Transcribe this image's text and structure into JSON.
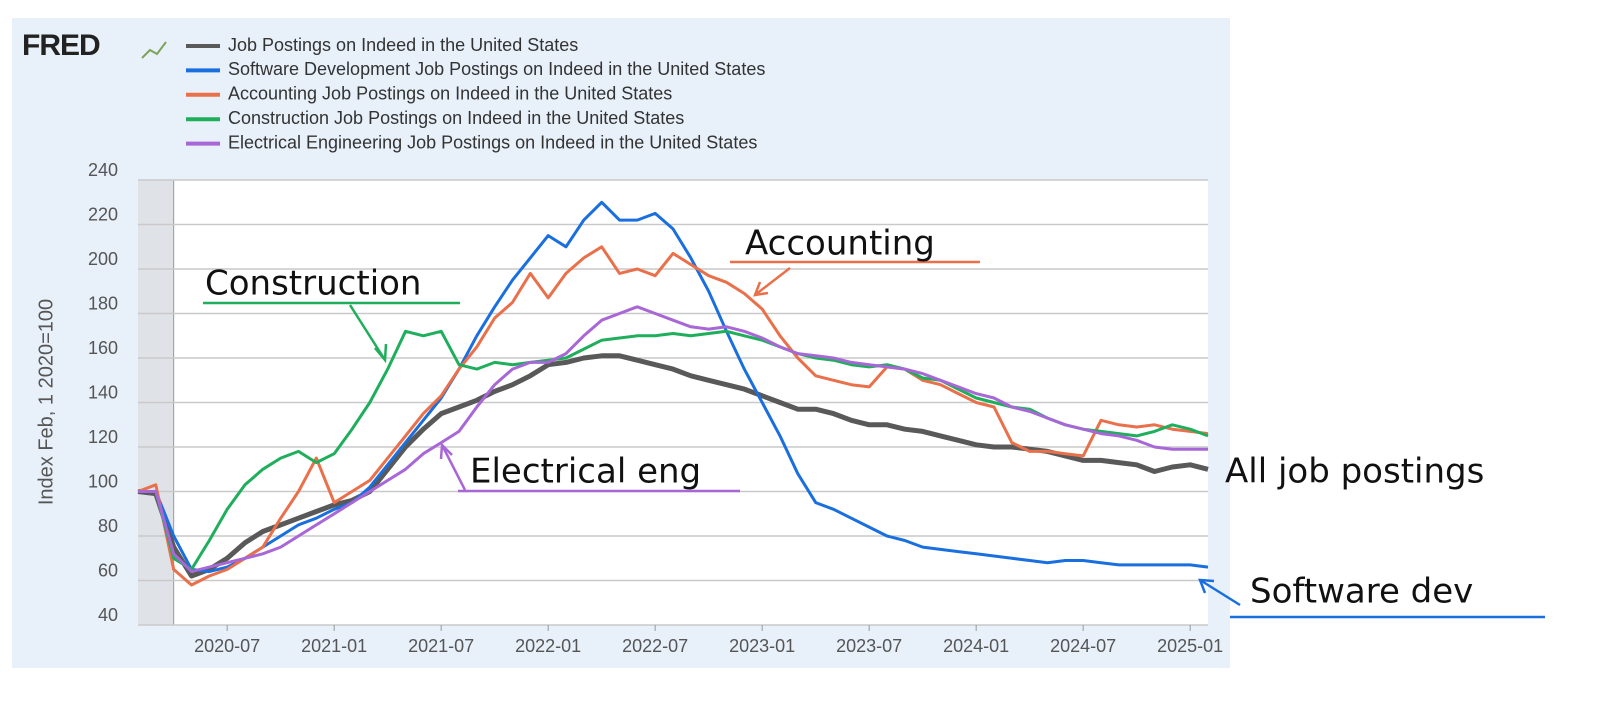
{
  "chart_data": {
    "type": "line",
    "logo": "FRED",
    "y_label": "Index Feb, 1 2020=100",
    "x": [
      "2020-02",
      "2020-03",
      "2020-04",
      "2020-05",
      "2020-06",
      "2020-07",
      "2020-08",
      "2020-09",
      "2020-10",
      "2020-11",
      "2020-12",
      "2021-01",
      "2021-02",
      "2021-03",
      "2021-04",
      "2021-05",
      "2021-06",
      "2021-07",
      "2021-08",
      "2021-09",
      "2021-10",
      "2021-11",
      "2021-12",
      "2022-01",
      "2022-02",
      "2022-03",
      "2022-04",
      "2022-05",
      "2022-06",
      "2022-07",
      "2022-08",
      "2022-09",
      "2022-10",
      "2022-11",
      "2022-12",
      "2023-01",
      "2023-02",
      "2023-03",
      "2023-04",
      "2023-05",
      "2023-06",
      "2023-07",
      "2023-08",
      "2023-09",
      "2023-10",
      "2023-11",
      "2023-12",
      "2024-01",
      "2024-02",
      "2024-03",
      "2024-04",
      "2024-05",
      "2024-06",
      "2024-07",
      "2024-08",
      "2024-09",
      "2024-10",
      "2024-11",
      "2024-12",
      "2025-01",
      "2025-02"
    ],
    "xticks": [
      "2020-07",
      "2021-01",
      "2021-07",
      "2022-01",
      "2022-07",
      "2023-01",
      "2023-07",
      "2024-01",
      "2024-07",
      "2025-01"
    ],
    "recession": [
      "2020-02",
      "2020-04"
    ],
    "ylim": [
      40,
      240
    ],
    "yticks": [
      40,
      60,
      80,
      100,
      120,
      140,
      160,
      180,
      200,
      220,
      240
    ],
    "grid": true,
    "series": [
      {
        "name": "Job Postings on Indeed in the United States",
        "color": "#595959",
        "values": [
          100,
          99,
          75,
          62,
          65,
          70,
          77,
          82,
          85,
          88,
          91,
          94,
          96,
          100,
          110,
          120,
          128,
          135,
          138,
          141,
          145,
          148,
          152,
          157,
          158,
          160,
          161,
          161,
          159,
          157,
          155,
          152,
          150,
          148,
          146,
          143,
          140,
          137,
          137,
          135,
          132,
          130,
          130,
          128,
          127,
          125,
          123,
          121,
          120,
          120,
          119,
          118,
          116,
          114,
          114,
          113,
          112,
          109,
          111,
          112,
          110
        ]
      },
      {
        "name": "Software Development Job Postings on Indeed in the United States",
        "color": "#1a6fdf",
        "values": [
          100,
          100,
          80,
          65,
          64,
          66,
          70,
          75,
          80,
          85,
          88,
          92,
          95,
          102,
          112,
          122,
          132,
          142,
          155,
          170,
          183,
          195,
          205,
          215,
          210,
          222,
          230,
          222,
          222,
          225,
          218,
          205,
          190,
          172,
          155,
          140,
          125,
          108,
          95,
          92,
          88,
          84,
          80,
          78,
          75,
          74,
          73,
          72,
          71,
          70,
          69,
          68,
          69,
          69,
          68,
          67,
          67,
          67,
          67,
          67,
          66
        ]
      },
      {
        "name": "Accounting Job Postings on Indeed in the United States",
        "color": "#e9704a",
        "values": [
          100,
          103,
          65,
          58,
          62,
          65,
          70,
          75,
          88,
          100,
          115,
          95,
          100,
          105,
          115,
          125,
          135,
          143,
          155,
          165,
          178,
          185,
          198,
          187,
          198,
          205,
          210,
          198,
          200,
          197,
          207,
          202,
          197,
          194,
          189,
          182,
          170,
          160,
          152,
          150,
          148,
          147,
          156,
          155,
          150,
          148,
          144,
          140,
          138,
          122,
          118,
          118,
          117,
          116,
          132,
          130,
          129,
          130,
          128,
          127,
          126
        ]
      },
      {
        "name": "Construction Job Postings on Indeed in the United States",
        "color": "#1fae5b",
        "values": [
          100,
          100,
          70,
          65,
          78,
          92,
          103,
          110,
          115,
          118,
          113,
          117,
          128,
          140,
          155,
          172,
          170,
          172,
          157,
          155,
          158,
          157,
          158,
          159,
          160,
          164,
          168,
          169,
          170,
          170,
          171,
          170,
          171,
          172,
          170,
          168,
          165,
          162,
          160,
          159,
          157,
          156,
          157,
          155,
          151,
          150,
          146,
          142,
          140,
          138,
          137,
          133,
          130,
          128,
          127,
          126,
          125,
          127,
          130,
          128,
          125
        ]
      },
      {
        "name": "Electrical Engineering Job Postings on Indeed in the United States",
        "color": "#a867d6",
        "values": [
          100,
          100,
          72,
          64,
          66,
          68,
          70,
          72,
          75,
          80,
          85,
          90,
          95,
          100,
          105,
          110,
          117,
          122,
          127,
          138,
          148,
          155,
          158,
          158,
          162,
          170,
          177,
          180,
          183,
          180,
          177,
          174,
          173,
          174,
          172,
          169,
          165,
          162,
          161,
          160,
          158,
          157,
          156,
          155,
          153,
          150,
          147,
          144,
          142,
          138,
          136,
          133,
          130,
          128,
          126,
          125,
          123,
          120,
          119,
          119,
          119
        ]
      }
    ],
    "annotations": [
      "Construction",
      "Accounting",
      "Electrical eng",
      "All job postings",
      "Software dev"
    ]
  }
}
